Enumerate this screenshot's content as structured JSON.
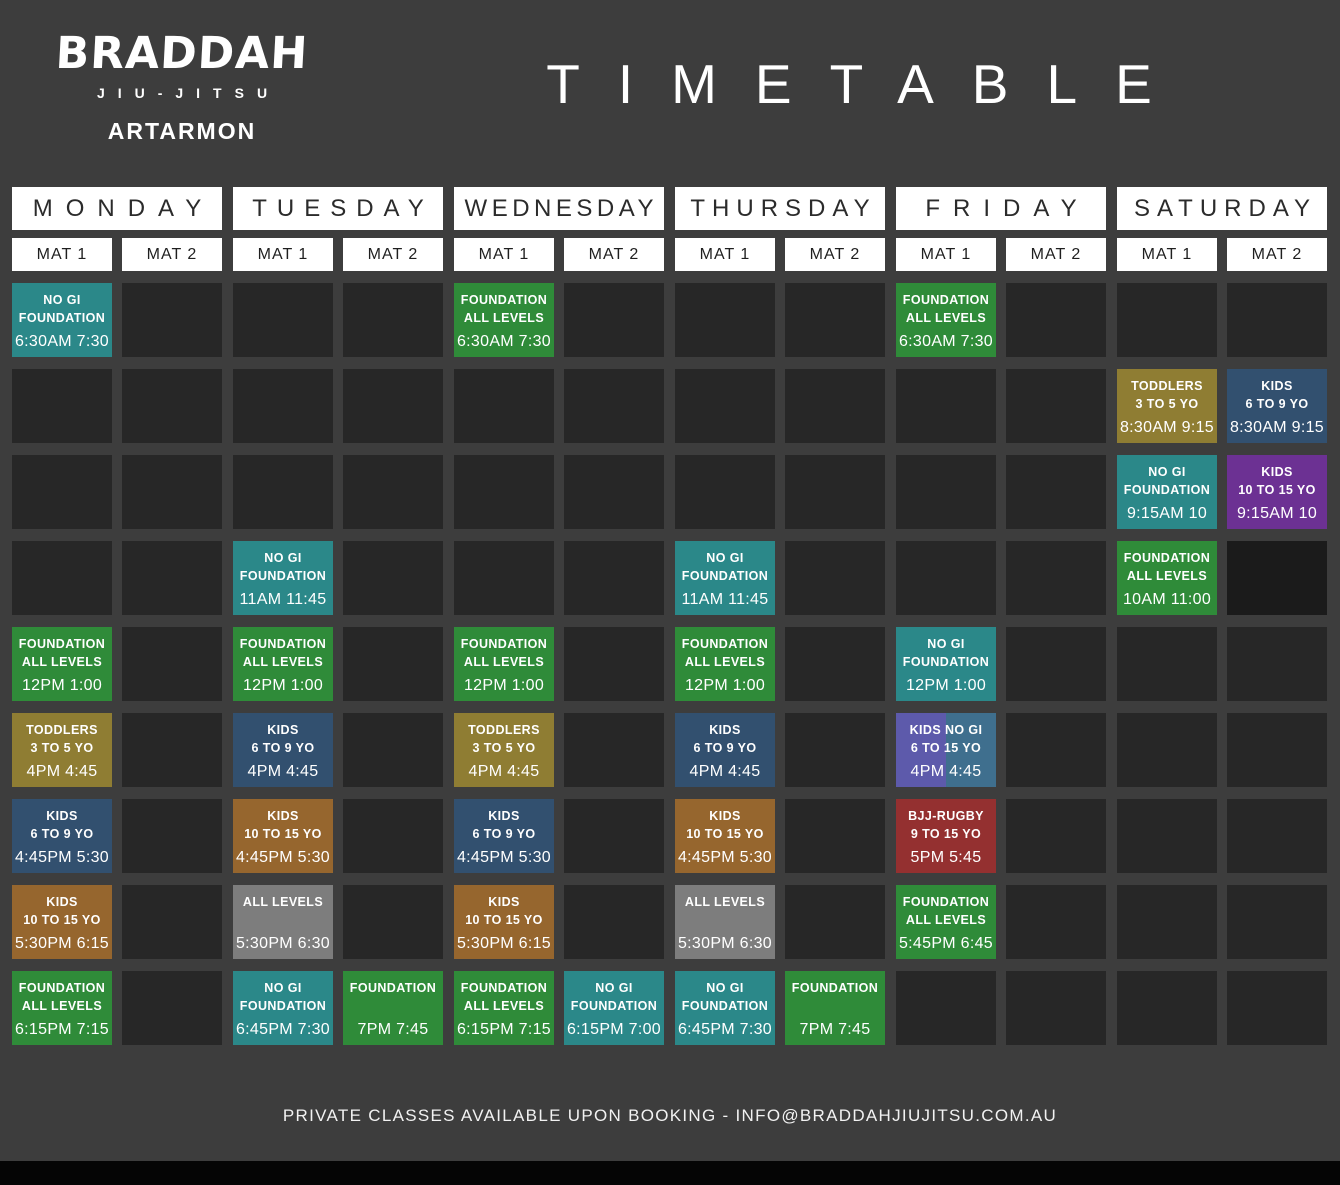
{
  "brand": {
    "name": "BRADDAH",
    "subtitle": "JIU-JITSU",
    "location": "ARTARMON"
  },
  "title": "TIMETABLE",
  "footer_note": "PRIVATE  CLASSES AVAILABLE UPON BOOKING - INFO@BRADDAHJIUJITSU.COM.AU",
  "mat_labels": [
    "MAT 1",
    "MAT 2"
  ],
  "colors": {
    "background": "#3D3D3D",
    "empty_cell": "#272727",
    "blackout": "#1B1B1B",
    "nogi": "#2B8889",
    "foundation": "#2F8B39",
    "toddlers": "#8F7D33",
    "kids_6_9": "#32506F",
    "kids_10_15": "#96662E",
    "kids_10_15_purple": "#6C3193",
    "all_levels": "#7D7D7D",
    "bjj_rugby": "#943030",
    "kids_nogi_left": "#5D5AAB",
    "kids_nogi_right": "#3F6F8E"
  },
  "schedule": {
    "rows": 9,
    "days": [
      {
        "label": "MONDAY",
        "classes": [
          {
            "row": 1,
            "mat": 1,
            "type": "nogi",
            "lines": [
              "NO GI",
              "FOUNDATION"
            ],
            "time": "6:30AM 7:30"
          },
          {
            "row": 5,
            "mat": 1,
            "type": "foundation",
            "lines": [
              "FOUNDATION",
              "ALL LEVELS"
            ],
            "time": "12PM 1:00"
          },
          {
            "row": 6,
            "mat": 1,
            "type": "toddlers",
            "lines": [
              "TODDLERS",
              "3 TO 5 YO"
            ],
            "time": "4PM 4:45"
          },
          {
            "row": 7,
            "mat": 1,
            "type": "kids_6_9",
            "lines": [
              "KIDS",
              "6 TO 9 YO"
            ],
            "time": "4:45PM 5:30"
          },
          {
            "row": 8,
            "mat": 1,
            "type": "kids_10_15",
            "lines": [
              "KIDS",
              "10 TO 15 YO"
            ],
            "time": "5:30PM 6:15"
          },
          {
            "row": 9,
            "mat": 1,
            "type": "foundation",
            "lines": [
              "FOUNDATION",
              "ALL LEVELS"
            ],
            "time": "6:15PM 7:15"
          }
        ]
      },
      {
        "label": "TUESDAY",
        "classes": [
          {
            "row": 4,
            "mat": 1,
            "type": "nogi",
            "lines": [
              "NO GI",
              "FOUNDATION"
            ],
            "time": "11AM 11:45"
          },
          {
            "row": 5,
            "mat": 1,
            "type": "foundation",
            "lines": [
              "FOUNDATION",
              "ALL LEVELS"
            ],
            "time": "12PM 1:00"
          },
          {
            "row": 6,
            "mat": 1,
            "type": "kids_6_9",
            "lines": [
              "KIDS",
              "6 TO 9 YO"
            ],
            "time": "4PM 4:45"
          },
          {
            "row": 7,
            "mat": 1,
            "type": "kids_10_15",
            "lines": [
              "KIDS",
              "10 TO 15 YO"
            ],
            "time": "4:45PM 5:30"
          },
          {
            "row": 8,
            "mat": 1,
            "type": "all_levels",
            "lines": [
              "ALL LEVELS"
            ],
            "time": "5:30PM 6:30"
          },
          {
            "row": 9,
            "mat": 1,
            "type": "nogi",
            "lines": [
              "NO GI",
              "FOUNDATION"
            ],
            "time": "6:45PM 7:30"
          },
          {
            "row": 9,
            "mat": 2,
            "type": "foundation",
            "lines": [
              "FOUNDATION"
            ],
            "time": "7PM 7:45"
          }
        ]
      },
      {
        "label": "WEDNESDAY",
        "classes": [
          {
            "row": 1,
            "mat": 1,
            "type": "foundation",
            "lines": [
              "FOUNDATION",
              "ALL LEVELS"
            ],
            "time": "6:30AM 7:30"
          },
          {
            "row": 5,
            "mat": 1,
            "type": "foundation",
            "lines": [
              "FOUNDATION",
              "ALL LEVELS"
            ],
            "time": "12PM 1:00"
          },
          {
            "row": 6,
            "mat": 1,
            "type": "toddlers",
            "lines": [
              "TODDLERS",
              "3 TO 5 YO"
            ],
            "time": "4PM 4:45"
          },
          {
            "row": 7,
            "mat": 1,
            "type": "kids_6_9",
            "lines": [
              "KIDS",
              "6 TO 9 YO"
            ],
            "time": "4:45PM 5:30"
          },
          {
            "row": 8,
            "mat": 1,
            "type": "kids_10_15",
            "lines": [
              "KIDS",
              "10 TO 15 YO"
            ],
            "time": "5:30PM 6:15"
          },
          {
            "row": 9,
            "mat": 1,
            "type": "foundation",
            "lines": [
              "FOUNDATION",
              "ALL LEVELS"
            ],
            "time": "6:15PM 7:15"
          },
          {
            "row": 9,
            "mat": 2,
            "type": "nogi",
            "lines": [
              "NO GI",
              "FOUNDATION"
            ],
            "time": "6:15PM 7:00"
          }
        ]
      },
      {
        "label": "THURSDAY",
        "classes": [
          {
            "row": 4,
            "mat": 1,
            "type": "nogi",
            "lines": [
              "NO GI",
              "FOUNDATION"
            ],
            "time": "11AM 11:45"
          },
          {
            "row": 5,
            "mat": 1,
            "type": "foundation",
            "lines": [
              "FOUNDATION",
              "ALL LEVELS"
            ],
            "time": "12PM 1:00"
          },
          {
            "row": 6,
            "mat": 1,
            "type": "kids_6_9",
            "lines": [
              "KIDS",
              "6 TO 9 YO"
            ],
            "time": "4PM 4:45"
          },
          {
            "row": 7,
            "mat": 1,
            "type": "kids_10_15",
            "lines": [
              "KIDS",
              "10 TO 15 YO"
            ],
            "time": "4:45PM 5:30"
          },
          {
            "row": 8,
            "mat": 1,
            "type": "all_levels",
            "lines": [
              "ALL LEVELS"
            ],
            "time": "5:30PM 6:30"
          },
          {
            "row": 9,
            "mat": 1,
            "type": "nogi",
            "lines": [
              "NO GI",
              "FOUNDATION"
            ],
            "time": "6:45PM 7:30"
          },
          {
            "row": 9,
            "mat": 2,
            "type": "foundation",
            "lines": [
              "FOUNDATION"
            ],
            "time": "7PM 7:45"
          }
        ]
      },
      {
        "label": "FRIDAY",
        "classes": [
          {
            "row": 1,
            "mat": 1,
            "type": "foundation",
            "lines": [
              "FOUNDATION",
              "ALL LEVELS"
            ],
            "time": "6:30AM 7:30"
          },
          {
            "row": 5,
            "mat": 1,
            "type": "nogi",
            "lines": [
              "NO GI",
              "FOUNDATION"
            ],
            "time": "12PM 1:00"
          },
          {
            "row": 6,
            "mat": 1,
            "type": "kids_nogi_split",
            "lines": [
              "KIDS NO GI",
              "6 TO 15 YO"
            ],
            "time": "4PM 4:45"
          },
          {
            "row": 7,
            "mat": 1,
            "type": "bjj_rugby",
            "lines": [
              "BJJ-RUGBY",
              "9 TO 15 YO"
            ],
            "time": "5PM 5:45"
          },
          {
            "row": 8,
            "mat": 1,
            "type": "foundation",
            "lines": [
              "FOUNDATION",
              "ALL LEVELS"
            ],
            "time": "5:45PM 6:45"
          }
        ]
      },
      {
        "label": "SATURDAY",
        "classes": [
          {
            "row": 2,
            "mat": 1,
            "type": "toddlers",
            "lines": [
              "TODDLERS",
              "3 TO 5 YO"
            ],
            "time": "8:30AM 9:15"
          },
          {
            "row": 2,
            "mat": 2,
            "type": "kids_6_9",
            "lines": [
              "KIDS",
              "6 TO 9 YO"
            ],
            "time": "8:30AM 9:15"
          },
          {
            "row": 3,
            "mat": 1,
            "type": "nogi",
            "lines": [
              "NO GI",
              "FOUNDATION"
            ],
            "time": "9:15AM 10"
          },
          {
            "row": 3,
            "mat": 2,
            "type": "kids_10_15_purple",
            "lines": [
              "KIDS",
              "10 TO 15 YO"
            ],
            "time": "9:15AM 10"
          },
          {
            "row": 4,
            "mat": 1,
            "type": "foundation",
            "lines": [
              "FOUNDATION",
              "ALL LEVELS"
            ],
            "time": "10AM 11:00"
          },
          {
            "row": 4,
            "mat": 2,
            "type": "blackout",
            "lines": [],
            "time": ""
          }
        ]
      }
    ]
  }
}
